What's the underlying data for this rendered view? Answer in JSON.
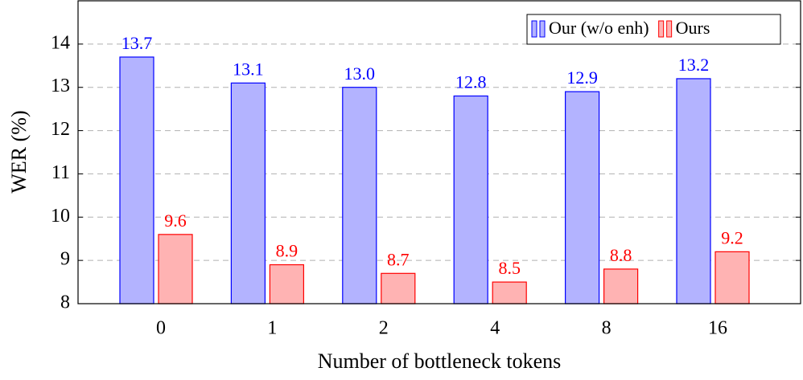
{
  "chart_data": {
    "type": "bar",
    "x_label": "Number of bottleneck tokens",
    "y_label": "WER (%)",
    "categories": [
      "0",
      "1",
      "2",
      "4",
      "8",
      "16"
    ],
    "series": [
      {
        "name": "Our (w/o enh)",
        "color": "#b3b3ff",
        "edge_color": "#0000ff",
        "values": [
          13.7,
          13.1,
          13.0,
          12.8,
          12.9,
          13.2
        ],
        "value_labels": [
          "13.7",
          "13.1",
          "13.0",
          "12.8",
          "12.9",
          "13.2"
        ]
      },
      {
        "name": "Ours",
        "color": "#ffb3b3",
        "edge_color": "#ff0000",
        "values": [
          9.6,
          8.9,
          8.7,
          8.5,
          8.8,
          9.2
        ],
        "value_labels": [
          "9.6",
          "8.9",
          "8.7",
          "8.5",
          "8.8",
          "9.2"
        ]
      }
    ],
    "ylim": [
      8,
      15
    ],
    "yticks": [
      8,
      9,
      10,
      11,
      12,
      13,
      14
    ],
    "grid": true,
    "legend": "upper right"
  }
}
